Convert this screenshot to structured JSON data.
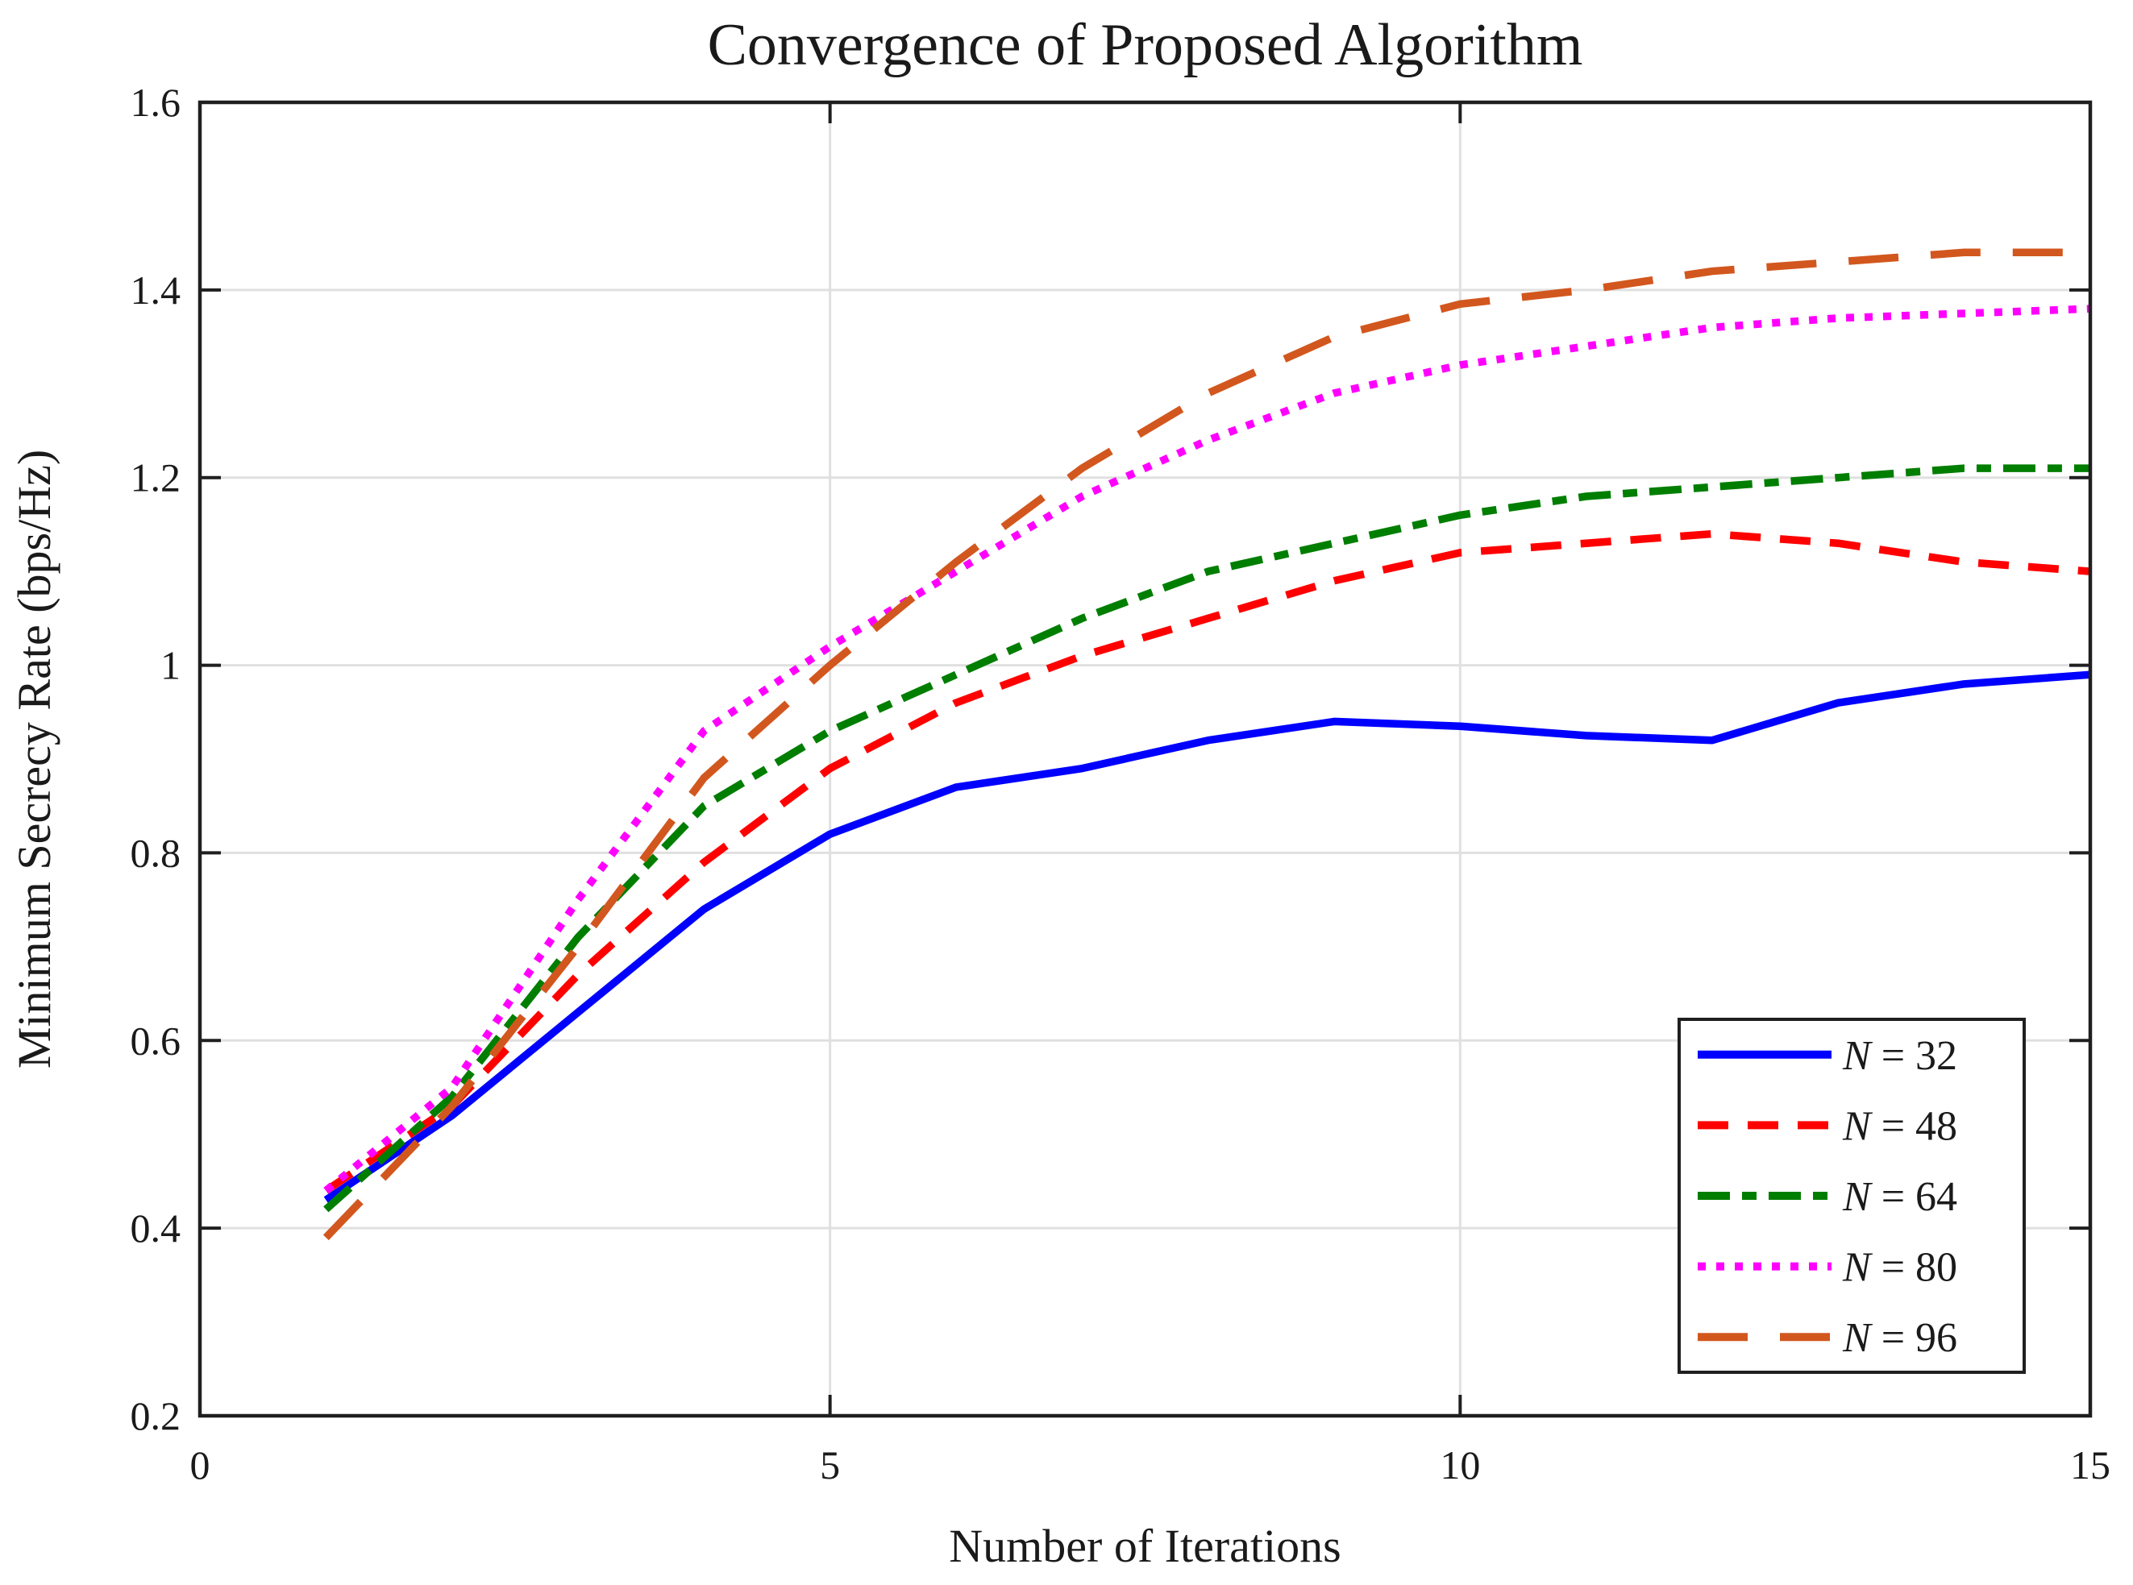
{
  "chart_data": {
    "type": "line",
    "title": "Convergence of Proposed Algorithm",
    "xlabel": "Number of Iterations",
    "ylabel": "Minimum Secrecy Rate (bps/Hz)",
    "xlim": [
      0,
      15
    ],
    "ylim": [
      0.2,
      1.6
    ],
    "xticks": [
      0,
      5,
      10,
      15
    ],
    "xtick_labels": [
      "0",
      "5",
      "10",
      "15"
    ],
    "yticks": [
      0.2,
      0.4,
      0.6,
      0.8,
      1.0,
      1.2,
      1.4,
      1.6
    ],
    "ytick_labels": [
      "0.2",
      "0.4",
      "0.6",
      "0.8",
      "1",
      "1.2",
      "1.4",
      "1.6"
    ],
    "grid": true,
    "legend_position": "bottom-right",
    "x": [
      1,
      2,
      3,
      4,
      5,
      6,
      7,
      8,
      9,
      10,
      11,
      12,
      13,
      14,
      15
    ],
    "series": [
      {
        "name": "N = 32",
        "color": "#0000ff",
        "dash": "solid",
        "dasharray": [],
        "values": [
          0.43,
          0.52,
          0.63,
          0.74,
          0.82,
          0.87,
          0.89,
          0.92,
          0.94,
          0.935,
          0.925,
          0.92,
          0.96,
          0.98,
          0.99
        ]
      },
      {
        "name": "N = 48",
        "color": "#ff0000",
        "dash": "dashed",
        "dasharray": [
          38,
          24
        ],
        "values": [
          0.44,
          0.53,
          0.67,
          0.79,
          0.89,
          0.96,
          1.01,
          1.05,
          1.09,
          1.12,
          1.13,
          1.14,
          1.13,
          1.11,
          1.1
        ]
      },
      {
        "name": "N = 64",
        "color": "#007e00",
        "dash": "dash-dot",
        "dasharray": [
          40,
          15,
          18,
          15
        ],
        "values": [
          0.42,
          0.54,
          0.71,
          0.85,
          0.93,
          0.99,
          1.05,
          1.1,
          1.13,
          1.16,
          1.18,
          1.19,
          1.2,
          1.21,
          1.21
        ]
      },
      {
        "name": "N = 80",
        "color": "#ff00ff",
        "dash": "dotted",
        "dasharray": [
          10,
          13
        ],
        "values": [
          0.44,
          0.55,
          0.75,
          0.93,
          1.02,
          1.1,
          1.18,
          1.24,
          1.29,
          1.32,
          1.34,
          1.36,
          1.37,
          1.375,
          1.38
        ]
      },
      {
        "name": "N = 96",
        "color": "#d2571e",
        "dash": "long-dash",
        "dasharray": [
          62,
          40
        ],
        "values": [
          0.39,
          0.53,
          0.7,
          0.88,
          1.0,
          1.11,
          1.21,
          1.29,
          1.35,
          1.385,
          1.4,
          1.42,
          1.43,
          1.44,
          1.44
        ]
      }
    ],
    "style": {
      "axis_color": "#1f1f1f",
      "grid_color": "#e0e0e0",
      "background": "#ffffff",
      "legend_border_color": "#1f1f1f",
      "legend_background": "#ffffff"
    }
  }
}
